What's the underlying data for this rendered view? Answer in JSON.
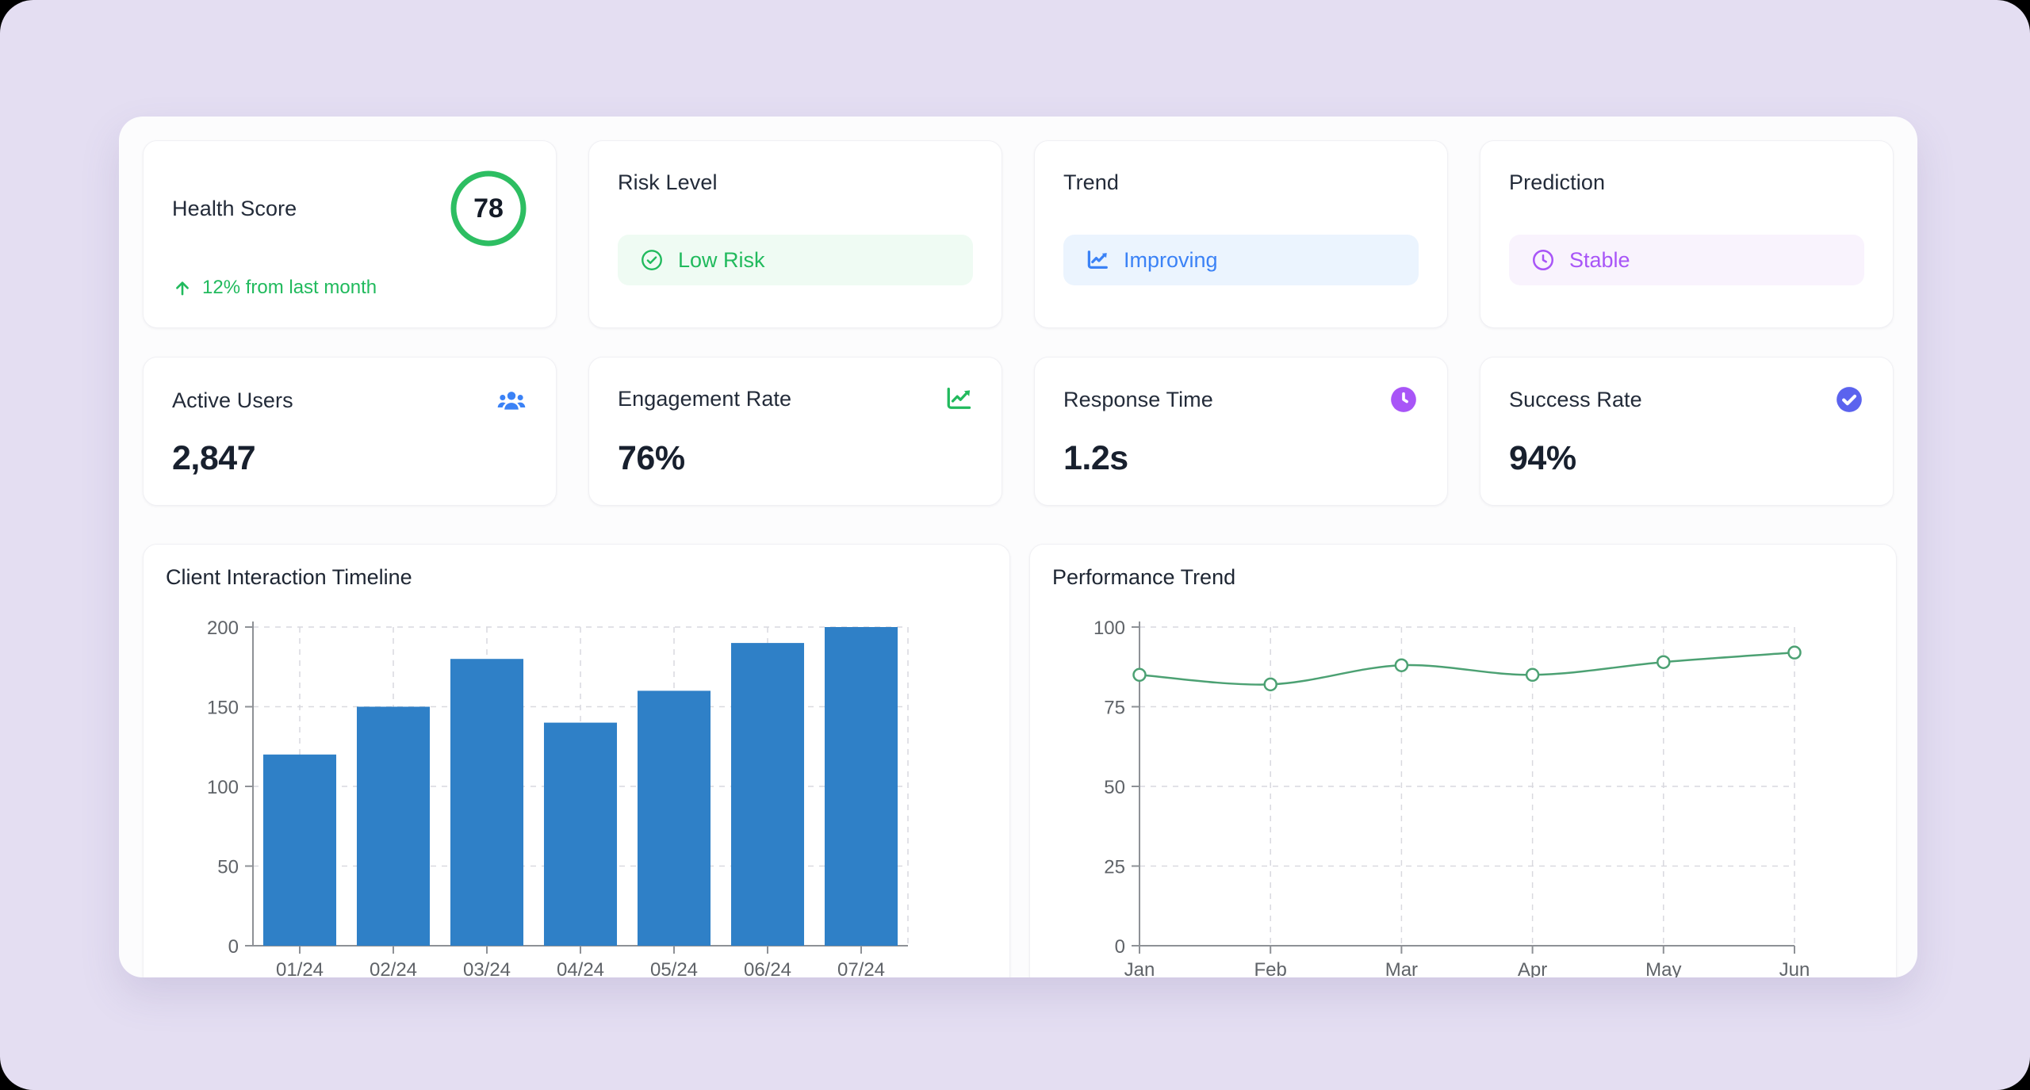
{
  "theme": {
    "page_bg": "#E4DEF2",
    "panel_bg": "#FCFCFD",
    "card_bg": "#FFFFFF",
    "green": "#21BA5D",
    "green_badge_bg": "#EFFBF3",
    "blue": "#3B82F6",
    "blue_badge_bg": "#EBF4FE",
    "purple": "#A855F7",
    "purple_badge_bg": "#F9F3FD",
    "indigo": "#5B63EE",
    "bar_color": "#2F80C7",
    "line_color": "#4CA173",
    "title_text": "#232B39",
    "value_text": "#18202E",
    "axis_text": "#5F6368"
  },
  "summary_cards": [
    {
      "title": "Health Score",
      "score": "78",
      "delta": "12% from last month",
      "icon": "arrow-up-icon",
      "ring_color": "#2DBE62"
    },
    {
      "title": "Risk Level",
      "badge_label": "Low Risk",
      "icon": "check-circle-icon",
      "color": "#21BA5D"
    },
    {
      "title": "Trend",
      "badge_label": "Improving",
      "icon": "trend-chart-icon",
      "color": "#3B82F6"
    },
    {
      "title": "Prediction",
      "badge_label": "Stable",
      "icon": "clock-icon",
      "color": "#A855F7"
    }
  ],
  "metric_cards": [
    {
      "title": "Active Users",
      "value": "2,847",
      "icon": "users-icon",
      "icon_color": "#3B82F6"
    },
    {
      "title": "Engagement Rate",
      "value": "76%",
      "icon": "chart-line-icon",
      "icon_color": "#21BA5D"
    },
    {
      "title": "Response Time",
      "value": "1.2s",
      "icon": "clock-filled-icon",
      "icon_color": "#A855F7"
    },
    {
      "title": "Success Rate",
      "value": "94%",
      "icon": "check-filled-icon",
      "icon_color": "#5B63EE"
    }
  ],
  "chart_data": [
    {
      "type": "bar",
      "title": "Client Interaction Timeline",
      "categories": [
        "01/24",
        "02/24",
        "03/24",
        "04/24",
        "05/24",
        "06/24",
        "07/24"
      ],
      "values": [
        120,
        150,
        180,
        140,
        160,
        190,
        200
      ],
      "yticks": [
        0,
        50,
        100,
        150,
        200
      ],
      "ylim": [
        0,
        200
      ],
      "xlabel": "",
      "ylabel": "",
      "grid": true,
      "legend": false,
      "color": "#2F80C7"
    },
    {
      "type": "line",
      "title": "Performance Trend",
      "categories": [
        "Jan",
        "Feb",
        "Mar",
        "Apr",
        "May",
        "Jun"
      ],
      "values": [
        85,
        82,
        88,
        85,
        89,
        92
      ],
      "yticks": [
        0,
        25,
        50,
        75,
        100
      ],
      "ylim": [
        0,
        100
      ],
      "xlabel": "",
      "ylabel": "",
      "grid": true,
      "legend": false,
      "smooth": true,
      "marker": "circle-open",
      "color": "#4CA173"
    }
  ]
}
